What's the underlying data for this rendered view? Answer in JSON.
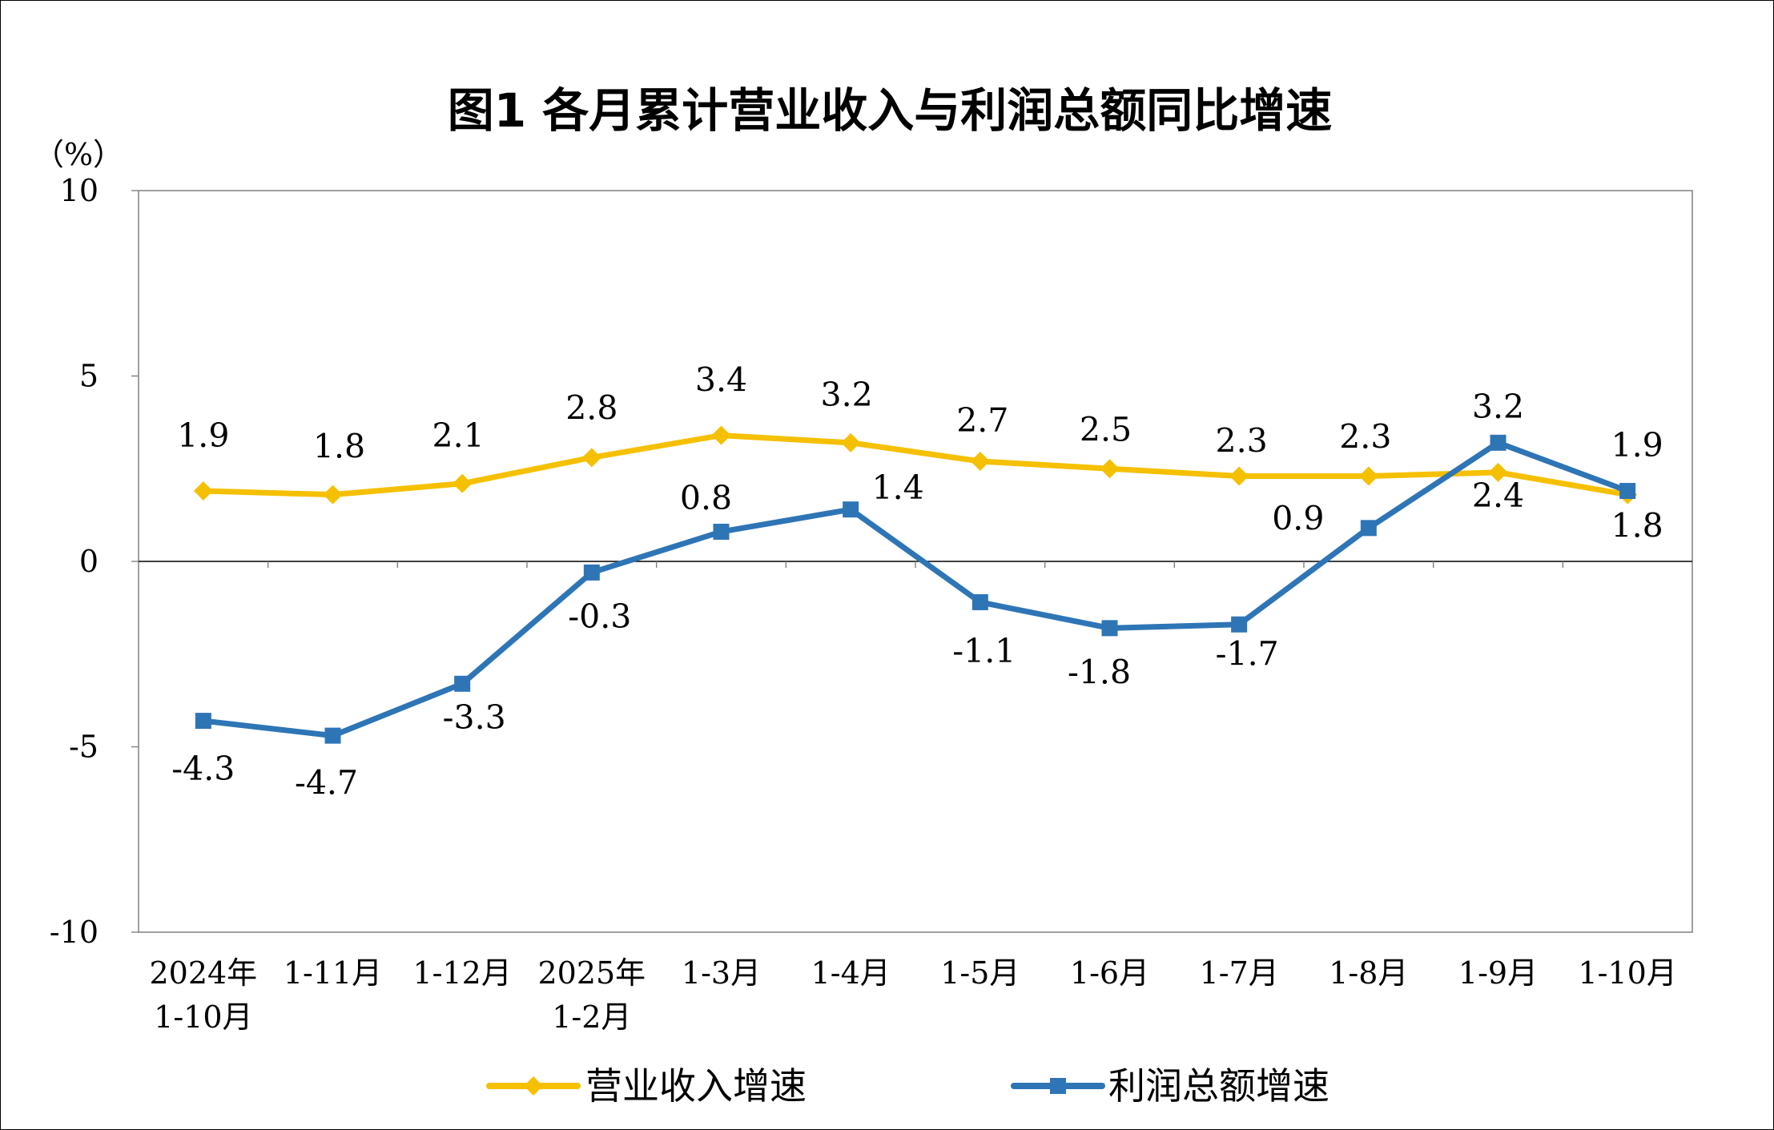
{
  "chart_data": {
    "type": "line",
    "title": "图1  各月累计营业收入与利润总额同比增速",
    "unit_label": "（%）",
    "xlabel": "",
    "ylabel": "",
    "ylim": [
      -10,
      10
    ],
    "yticks": [
      10,
      5,
      0,
      -5,
      -10
    ],
    "ytick_labels": [
      "10",
      "5",
      "0",
      "-5",
      "-10"
    ],
    "grid": false,
    "legend_position": "bottom",
    "categories": [
      "2024年1-10月",
      "1-11月",
      "1-12月",
      "2025年1-2月",
      "1-3月",
      "1-4月",
      "1-5月",
      "1-6月",
      "1-7月",
      "1-8月",
      "1-9月",
      "1-10月"
    ],
    "category_lines": [
      [
        "2024年",
        "1-10月"
      ],
      [
        "1-11月"
      ],
      [
        "1-12月"
      ],
      [
        "2025年",
        "1-2月"
      ],
      [
        "1-3月"
      ],
      [
        "1-4月"
      ],
      [
        "1-5月"
      ],
      [
        "1-6月"
      ],
      [
        "1-7月"
      ],
      [
        "1-8月"
      ],
      [
        "1-9月"
      ],
      [
        "1-10月"
      ]
    ],
    "series": [
      {
        "name": "营业收入增速",
        "color": "#F5C000",
        "marker": "diamond",
        "values": [
          1.9,
          1.8,
          2.1,
          2.8,
          3.4,
          3.2,
          2.7,
          2.5,
          2.3,
          2.3,
          2.4,
          1.8
        ],
        "labels": [
          "1.9",
          "1.8",
          "2.1",
          "2.8",
          "3.4",
          "3.2",
          "2.7",
          "2.5",
          "2.3",
          "2.3",
          "2.4",
          "1.8"
        ]
      },
      {
        "name": "利润总额增速",
        "color": "#2E75B6",
        "marker": "square",
        "values": [
          -4.3,
          -4.7,
          -3.3,
          -0.3,
          0.8,
          1.4,
          -1.1,
          -1.8,
          -1.7,
          0.9,
          3.2,
          1.9
        ],
        "labels": [
          "-4.3",
          "-4.7",
          "-3.3",
          "-0.3",
          "0.8",
          "1.4",
          "-1.1",
          "-1.8",
          "-1.7",
          "0.9",
          "3.2",
          "1.9"
        ]
      }
    ]
  }
}
